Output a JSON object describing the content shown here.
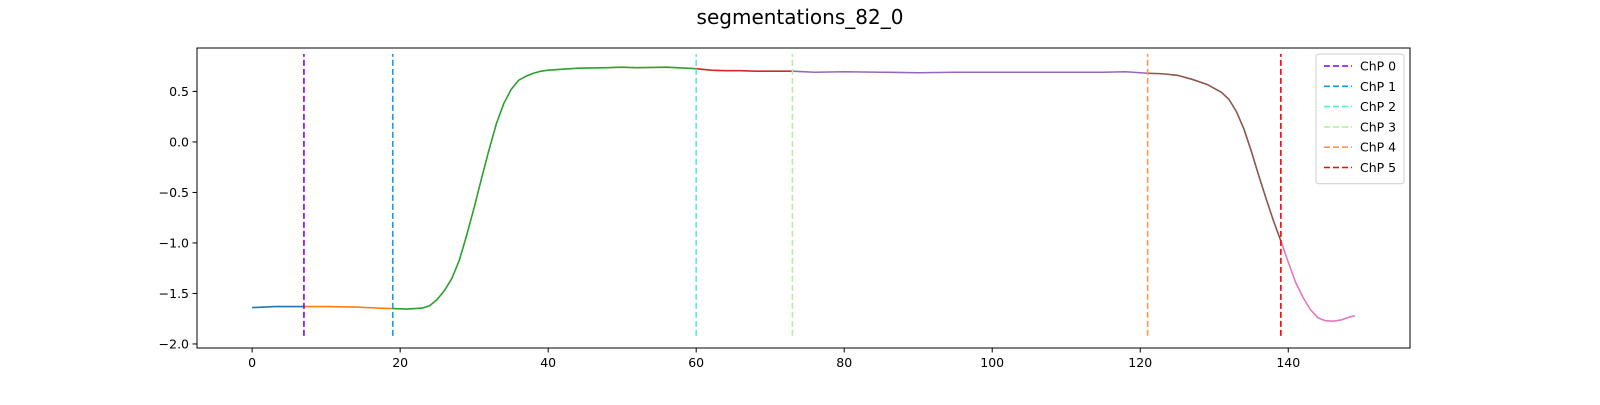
{
  "chart_data": {
    "type": "line",
    "title": "segmentations_82_0",
    "xlabel": "",
    "ylabel": "",
    "xlim": [
      -7.45,
      156.45
    ],
    "ylim": [
      -2.04,
      0.93
    ],
    "x_ticks": [
      0,
      20,
      40,
      60,
      80,
      100,
      120,
      140
    ],
    "y_ticks": [
      -2.0,
      -1.5,
      -1.0,
      -0.5,
      0.0,
      0.5
    ],
    "y_tick_labels": [
      "−2.0",
      "−1.5",
      "−1.0",
      "−0.5",
      "0.0",
      "0.5"
    ],
    "grid": false,
    "legend_position": "top-right",
    "segments": [
      {
        "color": "#1f77b4",
        "points": [
          [
            0,
            -1.64
          ],
          [
            3,
            -1.63
          ],
          [
            7,
            -1.63
          ]
        ]
      },
      {
        "color": "#ff7f0e",
        "points": [
          [
            7,
            -1.63
          ],
          [
            10,
            -1.63
          ],
          [
            14,
            -1.635
          ],
          [
            17,
            -1.645
          ],
          [
            19,
            -1.65
          ]
        ]
      },
      {
        "color": "#2ca02c",
        "points": [
          [
            19,
            -1.65
          ],
          [
            21,
            -1.655
          ],
          [
            23,
            -1.645
          ],
          [
            24,
            -1.62
          ],
          [
            25,
            -1.56
          ],
          [
            26,
            -1.47
          ],
          [
            27,
            -1.35
          ],
          [
            28,
            -1.17
          ],
          [
            29,
            -0.92
          ],
          [
            30,
            -0.65
          ],
          [
            31,
            -0.36
          ],
          [
            32,
            -0.08
          ],
          [
            33,
            0.18
          ],
          [
            34,
            0.38
          ],
          [
            35,
            0.52
          ],
          [
            36,
            0.61
          ],
          [
            37,
            0.65
          ],
          [
            38,
            0.68
          ],
          [
            39,
            0.7
          ],
          [
            40,
            0.71
          ],
          [
            42,
            0.72
          ],
          [
            44,
            0.73
          ],
          [
            48,
            0.735
          ],
          [
            50,
            0.74
          ],
          [
            52,
            0.735
          ],
          [
            56,
            0.74
          ],
          [
            60,
            0.725
          ]
        ]
      },
      {
        "color": "#d62728",
        "points": [
          [
            60,
            0.725
          ],
          [
            62,
            0.71
          ],
          [
            64,
            0.705
          ],
          [
            66,
            0.705
          ],
          [
            68,
            0.7
          ],
          [
            70,
            0.7
          ],
          [
            73,
            0.7
          ]
        ]
      },
      {
        "color": "#9467bd",
        "points": [
          [
            73,
            0.7
          ],
          [
            76,
            0.69
          ],
          [
            80,
            0.695
          ],
          [
            85,
            0.69
          ],
          [
            90,
            0.685
          ],
          [
            95,
            0.69
          ],
          [
            100,
            0.69
          ],
          [
            105,
            0.69
          ],
          [
            110,
            0.69
          ],
          [
            115,
            0.69
          ],
          [
            118,
            0.695
          ],
          [
            121,
            0.68
          ]
        ]
      },
      {
        "color": "#8c564b",
        "points": [
          [
            121,
            0.68
          ],
          [
            123,
            0.675
          ],
          [
            125,
            0.66
          ],
          [
            127,
            0.62
          ],
          [
            129,
            0.57
          ],
          [
            131,
            0.49
          ],
          [
            132,
            0.42
          ],
          [
            133,
            0.3
          ],
          [
            134,
            0.13
          ],
          [
            135,
            -0.09
          ],
          [
            136,
            -0.33
          ],
          [
            137,
            -0.56
          ],
          [
            138,
            -0.78
          ],
          [
            139,
            -0.98
          ]
        ]
      },
      {
        "color": "#e377c2",
        "points": [
          [
            139,
            -0.98
          ],
          [
            140,
            -1.19
          ],
          [
            141,
            -1.39
          ],
          [
            142,
            -1.54
          ],
          [
            143,
            -1.66
          ],
          [
            144,
            -1.74
          ],
          [
            145,
            -1.77
          ],
          [
            146,
            -1.775
          ],
          [
            147,
            -1.765
          ],
          [
            148,
            -1.74
          ],
          [
            149,
            -1.72
          ]
        ]
      }
    ],
    "changepoints": [
      {
        "name": "ChP 0",
        "x": 7,
        "color": "#7f00ff"
      },
      {
        "name": "ChP 1",
        "x": 19,
        "color": "#1996f3"
      },
      {
        "name": "ChP 2",
        "x": 60,
        "color": "#4df3ce"
      },
      {
        "name": "ChP 3",
        "x": 73,
        "color": "#b2f396"
      },
      {
        "name": "ChP 4",
        "x": 121,
        "color": "#ff964f"
      },
      {
        "name": "ChP 5",
        "x": 139,
        "color": "#ff0000"
      }
    ],
    "changepoint_y_range": [
      -1.92,
      0.87
    ]
  }
}
